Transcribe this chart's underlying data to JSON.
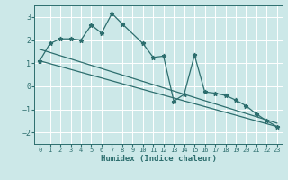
{
  "xlabel": "Humidex (Indice chaleur)",
  "bg_color": "#cce8e8",
  "grid_color": "#ffffff",
  "line_color": "#2d6e6e",
  "xlim": [
    -0.5,
    23.5
  ],
  "ylim": [
    -2.5,
    3.5
  ],
  "yticks": [
    -2,
    -1,
    0,
    1,
    2,
    3
  ],
  "xticks": [
    0,
    1,
    2,
    3,
    4,
    5,
    6,
    7,
    8,
    9,
    10,
    11,
    12,
    13,
    14,
    15,
    16,
    17,
    18,
    19,
    20,
    21,
    22,
    23
  ],
  "data_x": [
    0,
    1,
    2,
    3,
    4,
    5,
    6,
    7,
    8,
    10,
    11,
    12,
    13,
    14,
    15,
    16,
    17,
    18,
    19,
    20,
    21,
    22,
    23
  ],
  "data_y": [
    1.1,
    1.85,
    2.05,
    2.05,
    2.0,
    2.65,
    2.3,
    3.15,
    2.7,
    1.85,
    1.25,
    1.3,
    -0.65,
    -0.35,
    1.35,
    -0.25,
    -0.3,
    -0.4,
    -0.6,
    -0.85,
    -1.2,
    -1.5,
    -1.75
  ],
  "line1_x": [
    0,
    23
  ],
  "line1_y": [
    1.6,
    -1.6
  ],
  "line2_x": [
    0,
    23
  ],
  "line2_y": [
    1.1,
    -1.75
  ]
}
